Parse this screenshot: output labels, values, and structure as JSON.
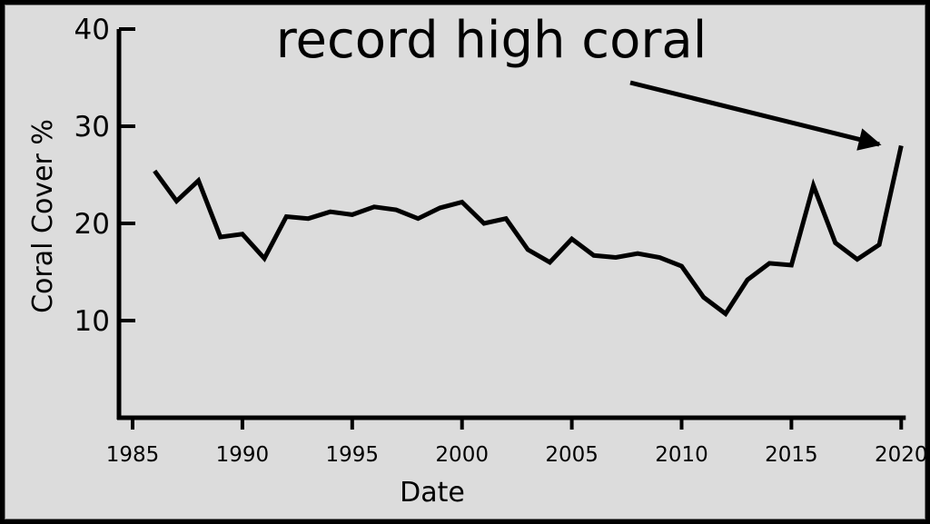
{
  "colors": {
    "background": "#dcdcdc",
    "frame": "#000000",
    "line": "#000000"
  },
  "chart_data": {
    "type": "line",
    "title": "",
    "xlabel": "Date",
    "ylabel": "Coral Cover %",
    "xlim": [
      1985,
      2020
    ],
    "ylim": [
      0,
      40
    ],
    "x_ticks": [
      "1985",
      "1990",
      "1995",
      "2000",
      "2005",
      "2010",
      "2015",
      "2020"
    ],
    "y_ticks": [
      "10",
      "20",
      "30",
      "40"
    ],
    "grid": false,
    "annotation": {
      "text": "record high coral",
      "arrow_points_to": [
        2019.0,
        28.6
      ]
    },
    "series": [
      {
        "x": [
          1986,
          1987,
          1988,
          1989,
          1990,
          1991,
          1992,
          1993,
          1994,
          1995,
          1996,
          1997,
          1998,
          1999,
          2000,
          2001,
          2002,
          2003,
          2004,
          2005,
          2006,
          2007,
          2008,
          2009,
          2010,
          2011,
          2012,
          2013,
          2014,
          2015,
          2016,
          2017,
          2018,
          2019,
          2020
        ],
        "values": [
          25.4,
          22.3,
          24.4,
          18.6,
          18.9,
          16.4,
          20.7,
          20.5,
          21.2,
          20.9,
          21.7,
          21.4,
          20.5,
          21.6,
          22.2,
          20.0,
          20.5,
          17.3,
          16.0,
          18.4,
          16.7,
          16.5,
          16.9,
          16.5,
          15.6,
          12.4,
          10.7,
          14.2,
          15.9,
          15.7,
          23.9,
          18.0,
          16.3,
          17.8,
          28.0
        ]
      }
    ]
  }
}
